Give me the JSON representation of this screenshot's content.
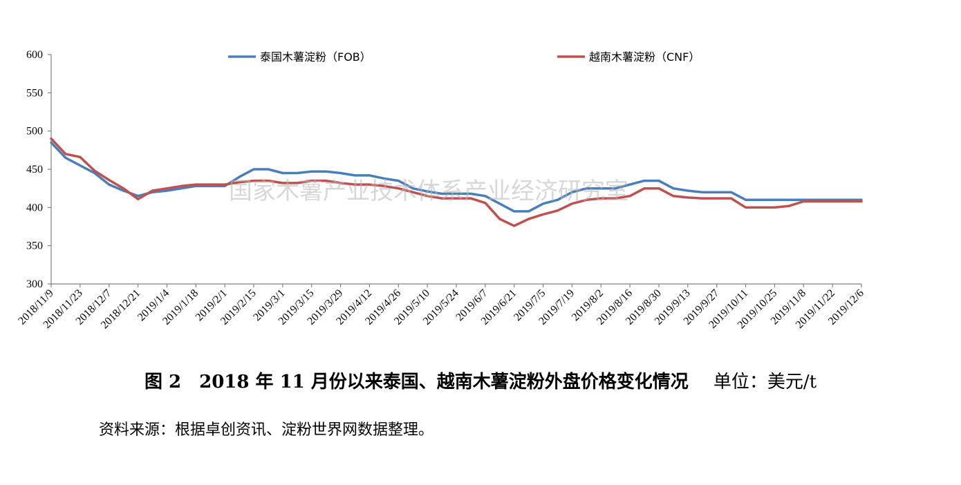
{
  "chart_data": {
    "type": "line",
    "title": "",
    "xlabel": "",
    "ylabel": "",
    "ylim": [
      300,
      600
    ],
    "yticks": [
      300,
      350,
      400,
      450,
      500,
      550,
      600
    ],
    "grid": false,
    "legend_position": "top",
    "x_tick_labels": [
      "2018/11/9",
      "2018/11/23",
      "2018/12/7",
      "2018/12/21",
      "2019/1/4",
      "2019/1/18",
      "2019/2/1",
      "2019/2/15",
      "2019/3/1",
      "2019/3/15",
      "2019/3/29",
      "2019/4/12",
      "2019/4/26",
      "2019/5/10",
      "2019/5/24",
      "2019/6/7",
      "2019/6/21",
      "2019/7/5",
      "2019/7/19",
      "2019/8/2",
      "2019/8/16",
      "2019/8/30",
      "2019/9/13",
      "2019/9/27",
      "2019/10/11",
      "2019/10/25",
      "2019/11/8",
      "2019/11/22",
      "2019/12/6"
    ],
    "series": [
      {
        "name": "泰国木薯淀粉（FOB）",
        "color": "#4a7ebb",
        "values": [
          485,
          465,
          455,
          445,
          430,
          422,
          415,
          420,
          422,
          425,
          428,
          428,
          428,
          440,
          450,
          450,
          445,
          445,
          447,
          447,
          445,
          442,
          442,
          438,
          435,
          425,
          421,
          418,
          418,
          418,
          415,
          405,
          395,
          395,
          405,
          410,
          420,
          425,
          425,
          425,
          430,
          435,
          435,
          425,
          422,
          420,
          420,
          420,
          410,
          410,
          410,
          410,
          410,
          410,
          410,
          410,
          410
        ]
      },
      {
        "name": "越南木薯淀粉（CNF）",
        "color": "#c0504d",
        "values": [
          490,
          470,
          466,
          448,
          436,
          425,
          411,
          422,
          425,
          428,
          430,
          430,
          430,
          433,
          435,
          435,
          432,
          432,
          435,
          435,
          432,
          430,
          430,
          428,
          425,
          420,
          415,
          412,
          412,
          412,
          406,
          385,
          376,
          385,
          391,
          396,
          405,
          410,
          412,
          412,
          415,
          425,
          425,
          415,
          413,
          412,
          412,
          412,
          400,
          400,
          400,
          402,
          408,
          408,
          408,
          408,
          408
        ]
      }
    ]
  },
  "watermark": "国家木薯产业技术体系产业经济研究室",
  "caption": {
    "text": "图 2　2018 年 11 月份以来泰国、越南木薯淀粉外盘价格变化情况",
    "unit": "单位：美元/t"
  },
  "source": "资料来源：根据卓创资讯、淀粉世界网数据整理。"
}
